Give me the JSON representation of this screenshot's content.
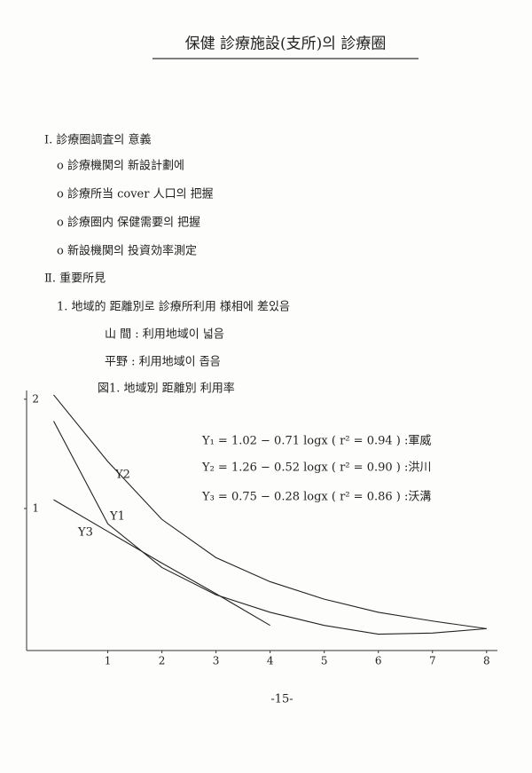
{
  "title": "保健 診療施設(支所)의 診療圈",
  "sections": [
    {
      "heading": "Ⅰ. 診療圈調査의 意義",
      "items": [
        "o 診療機関의 新設計劃에",
        "o 診療所当 cover 人口의 把握",
        "o 診療圈内 保健需要의 把握",
        "o 新設機関의 投資効率測定"
      ]
    },
    {
      "heading": "Ⅱ. 重要所見",
      "items": [
        "1. 地域的 距離別로 診療所利用 様相에 差있음",
        "山 間 : 利用地域이 넓음",
        "平野 : 利用地域이 좁음"
      ]
    }
  ],
  "chart_data": {
    "type": "line",
    "title": "図1. 地域別 距離別 利用率",
    "x": [
      0,
      1,
      2,
      3,
      4,
      5,
      6,
      7,
      8
    ],
    "series": [
      {
        "name": "Y2",
        "color": "#222222",
        "values": [
          2.04,
          1.43,
          0.9,
          0.55,
          0.33,
          0.17,
          0.05,
          -0.03,
          -0.1
        ]
      },
      {
        "name": "Y1",
        "color": "#222222",
        "values": [
          1.8,
          0.86,
          0.46,
          0.21,
          0.05,
          -0.07,
          -0.15,
          -0.14,
          -0.1
        ]
      },
      {
        "name": "Y3",
        "color": "#222222",
        "values": [
          1.08,
          0.79,
          0.5,
          0.22,
          -0.07,
          null,
          null,
          null,
          null
        ]
      }
    ],
    "xlim": [
      -0.5,
      8.2
    ],
    "ylim": [
      -0.3,
      2.08
    ],
    "xticks": [
      1,
      2,
      3,
      4,
      5,
      6,
      7,
      8
    ],
    "yticks": [
      1,
      2
    ],
    "annotations": [
      "Y₁ = 1.02 − 0.71 logx ( r² = 0.94 ) :軍威",
      "Y₂ = 1.26 − 0.52 logx ( r² = 0.90 ) :洪川",
      "Y₃ = 0.75 − 0.28 logx ( r² = 0.86 ) :沃溝"
    ]
  },
  "page_number": "-15-"
}
